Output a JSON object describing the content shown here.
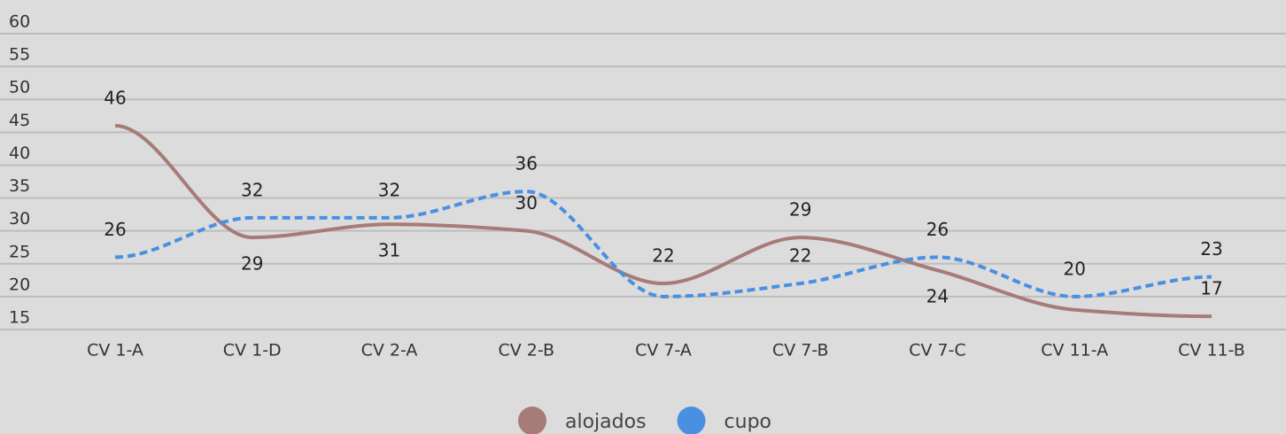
{
  "chart_data": {
    "type": "line",
    "categories": [
      "CV 1-A",
      "CV 1-D",
      "CV 2-A",
      "CV 2-B",
      "CV 7-A",
      "CV 7-B",
      "CV 7-C",
      "CV 11-A",
      "CV 11-B"
    ],
    "series": [
      {
        "name": "alojados",
        "color": "#a67b78",
        "dash": false,
        "values": [
          46,
          29,
          31,
          30,
          22,
          29,
          24,
          18,
          17
        ],
        "value_labels": [
          "46",
          "29",
          "31",
          "30",
          "22",
          "29",
          "24",
          null,
          "17"
        ]
      },
      {
        "name": "cupo",
        "color": "#4a90e2",
        "dash": true,
        "values": [
          26,
          32,
          32,
          36,
          20,
          22,
          26,
          20,
          23
        ],
        "value_labels": [
          "26",
          "32",
          "32",
          "36",
          null,
          "22",
          "26",
          "20",
          "23"
        ]
      }
    ],
    "ylim": [
      15,
      60
    ],
    "yticks": [
      15,
      20,
      25,
      30,
      35,
      40,
      45,
      50,
      55,
      60
    ],
    "grid": true,
    "legend": "bottom"
  }
}
